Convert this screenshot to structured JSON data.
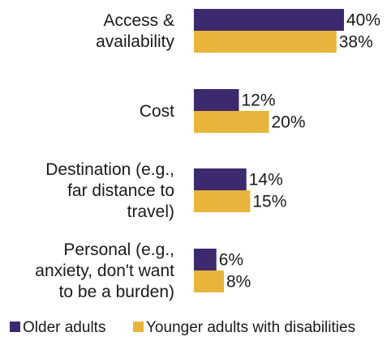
{
  "chart_data": {
    "type": "bar",
    "orientation": "horizontal",
    "categories": [
      [
        "Access &",
        "availability"
      ],
      [
        "Cost"
      ],
      [
        "Destination (e.g.,",
        "far distance to",
        "travel)"
      ],
      [
        "Personal (e.g.,",
        "anxiety, don't want",
        "to be a burden)"
      ]
    ],
    "series": [
      {
        "name": "Older adults",
        "color": "#3d2a6e",
        "values": [
          40,
          12,
          14,
          6
        ],
        "labels": [
          "40%",
          "12%",
          "14%",
          "6%"
        ]
      },
      {
        "name": "Younger adults with disabilities",
        "color": "#e8b43c",
        "values": [
          38,
          20,
          15,
          8
        ],
        "labels": [
          "38%",
          "20%",
          "15%",
          "8%"
        ]
      }
    ],
    "xlim": [
      0,
      40
    ],
    "grid": false,
    "legend_position": "bottom"
  }
}
